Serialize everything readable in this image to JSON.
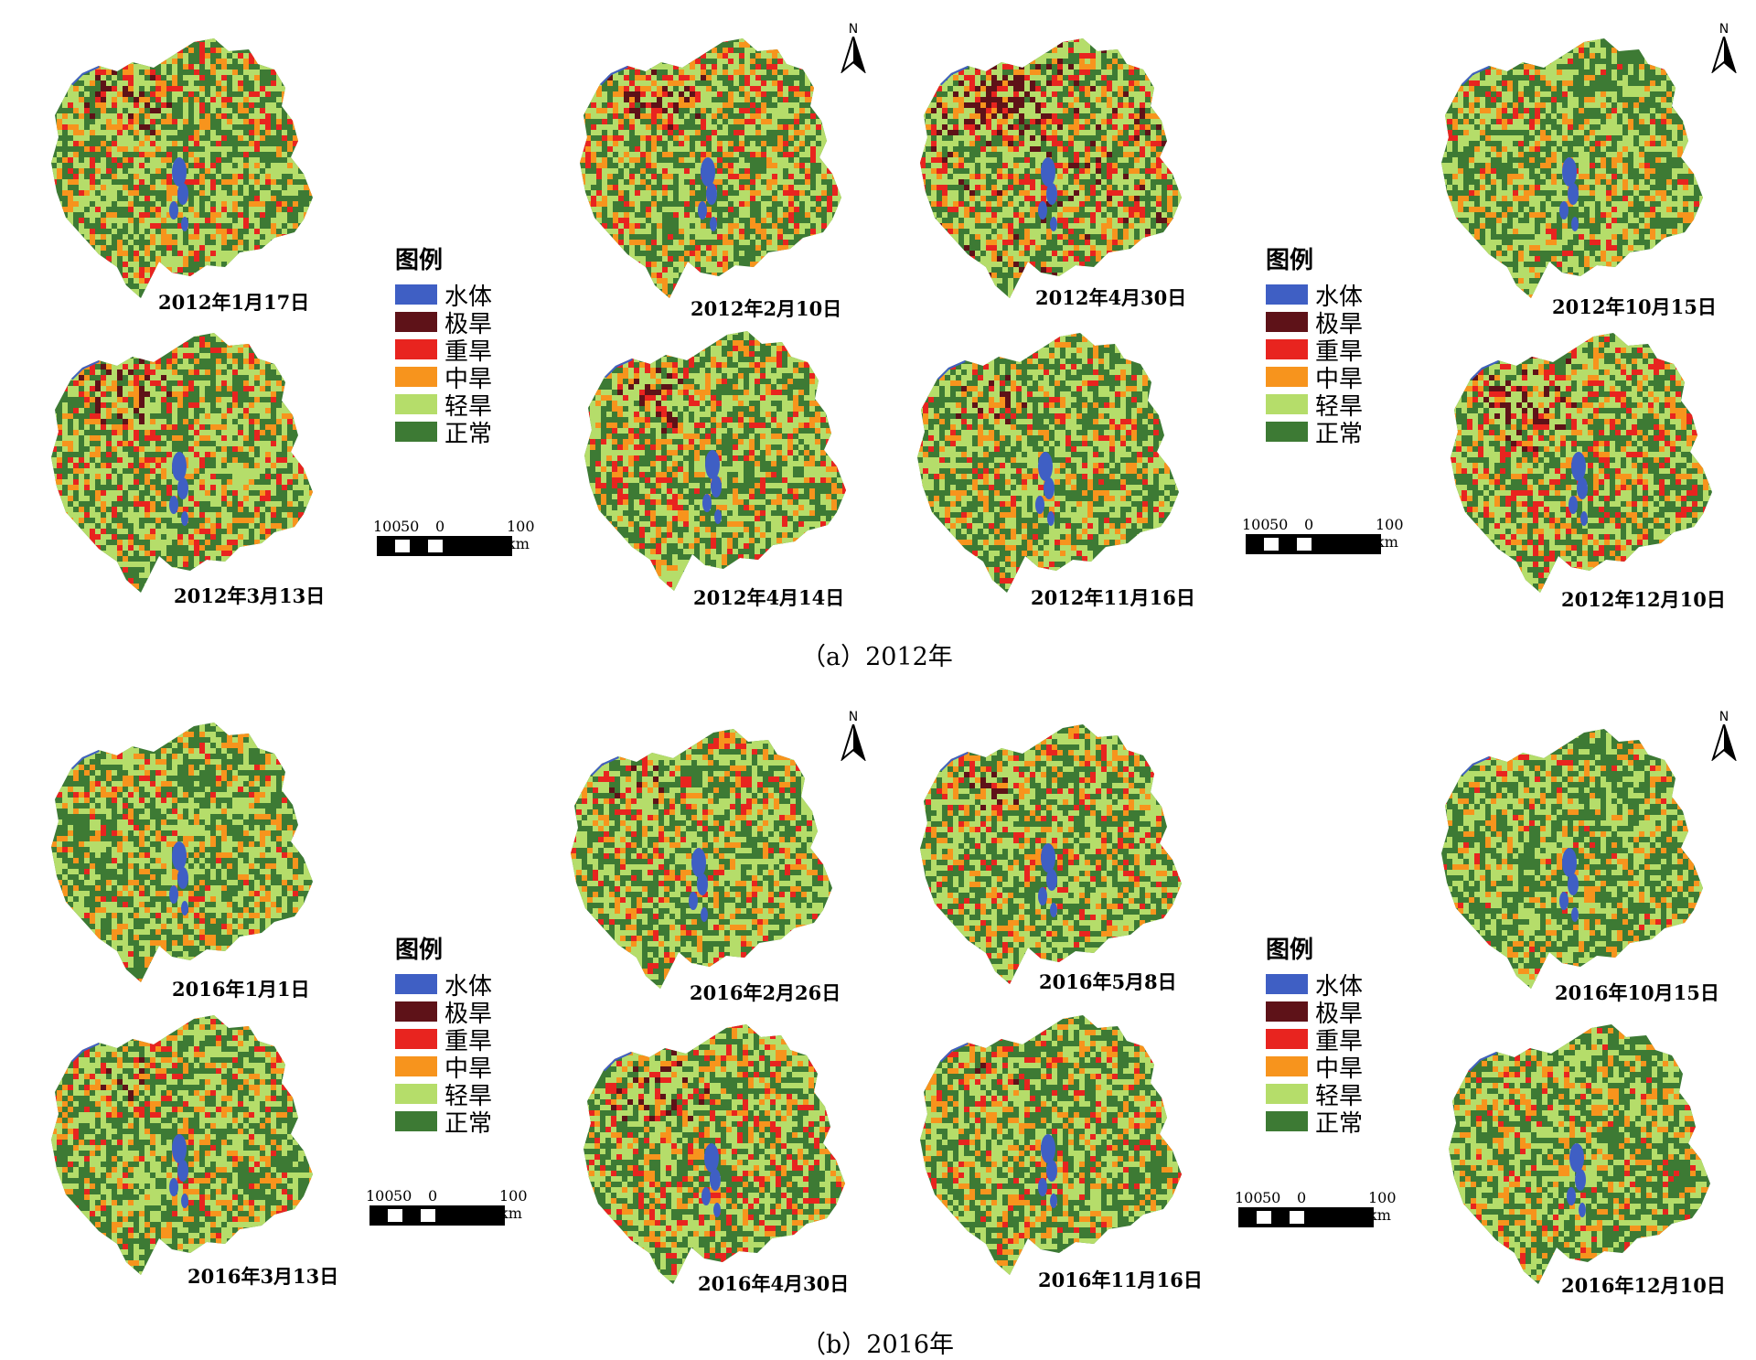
{
  "legend": {
    "title": "图例",
    "items": [
      {
        "label": "水体",
        "color": "#3f5fc4"
      },
      {
        "label": "极旱",
        "color": "#5e1218"
      },
      {
        "label": "重旱",
        "color": "#e8241f"
      },
      {
        "label": "中旱",
        "color": "#f7941d"
      },
      {
        "label": "轻旱",
        "color": "#b5dd6a"
      },
      {
        "label": "正常",
        "color": "#3d7a34"
      }
    ]
  },
  "scalebar": {
    "labels": [
      "100",
      "50",
      "0",
      "100 km"
    ]
  },
  "north_label": "N",
  "panels": [
    {
      "caption": "（a）2012年",
      "maps": [
        {
          "date": "2012年1月17日",
          "severity": 0.45
        },
        {
          "date": "2012年3月13日",
          "severity": 0.45
        },
        {
          "date": "2012年2月10日",
          "severity": 0.5
        },
        {
          "date": "2012年4月14日",
          "severity": 0.45
        },
        {
          "date": "2012年4月30日",
          "severity": 0.75
        },
        {
          "date": "2012年11月16日",
          "severity": 0.35
        },
        {
          "date": "2012年10月15日",
          "severity": 0.2
        },
        {
          "date": "2012年12月10日",
          "severity": 0.55
        }
      ]
    },
    {
      "caption": "（b）2016年",
      "maps": [
        {
          "date": "2016年1月1日",
          "severity": 0.2
        },
        {
          "date": "2016年3月13日",
          "severity": 0.3
        },
        {
          "date": "2016年2月26日",
          "severity": 0.35
        },
        {
          "date": "2016年4月30日",
          "severity": 0.5
        },
        {
          "date": "2016年5月8日",
          "severity": 0.35
        },
        {
          "date": "2016年11月16日",
          "severity": 0.25
        },
        {
          "date": "2016年10月15日",
          "severity": 0.15
        },
        {
          "date": "2016年12月10日",
          "severity": 0.2
        }
      ]
    }
  ]
}
